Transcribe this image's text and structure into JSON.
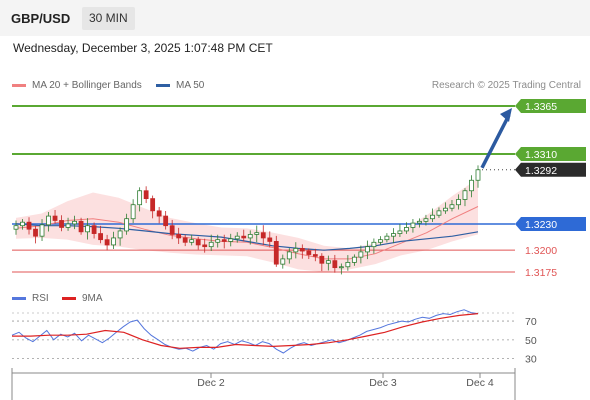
{
  "header": {
    "pair": "GBP/USD",
    "timeframe": "30 MIN",
    "datetime": "Wednesday, December 3, 2025 1:07:48 PM CET"
  },
  "legend": {
    "items": [
      {
        "label": "MA 20 + Bollinger Bands",
        "color": "#f08080"
      },
      {
        "label": "MA 50",
        "color": "#2e5fa3"
      }
    ],
    "credit": "Research © 2025 Trading Central"
  },
  "rsi_legend": {
    "items": [
      {
        "label": "RSI",
        "color": "#5577dd"
      },
      {
        "label": "9MA",
        "color": "#dd2222"
      }
    ]
  },
  "colors": {
    "resistance": "#5aa832",
    "support_main": "#2e6ad6",
    "support_minor": "#e05555",
    "current": "#2b2b2b",
    "arrow": "#2c5aa0",
    "bollinger": "#fbd5d5",
    "ma20": "#f08080",
    "ma50": "#2e5fa3",
    "candle_up": "#2e7d32",
    "candle_down": "#c62828"
  },
  "chart_data": [
    {
      "type": "candlestick",
      "title": "GBP/USD 30 MIN",
      "x_ticks": [
        "Dec 2",
        "Dec 3",
        "Dec 4"
      ],
      "price_levels": [
        {
          "value": 1.3365,
          "label": "1.3365",
          "kind": "resistance"
        },
        {
          "value": 1.331,
          "label": "1.3310",
          "kind": "resistance"
        },
        {
          "value": 1.3292,
          "label": "1.3292",
          "kind": "current"
        },
        {
          "value": 1.323,
          "label": "1.3230",
          "kind": "pivot"
        },
        {
          "value": 1.32,
          "label": "1.3200",
          "kind": "support"
        },
        {
          "value": 1.3175,
          "label": "1.3175",
          "kind": "support"
        }
      ],
      "ylim": [
        1.316,
        1.34
      ],
      "series": [
        {
          "name": "Price",
          "close": [
            1.3228,
            1.3232,
            1.3224,
            1.3216,
            1.3229,
            1.3239,
            1.3234,
            1.3226,
            1.323,
            1.3233,
            1.3221,
            1.3228,
            1.3219,
            1.3212,
            1.3206,
            1.3214,
            1.3222,
            1.3236,
            1.3252,
            1.3268,
            1.3259,
            1.3245,
            1.3239,
            1.3228,
            1.3218,
            1.3214,
            1.3209,
            1.3212,
            1.3206,
            1.3204,
            1.3209,
            1.3212,
            1.321,
            1.3213,
            1.3216,
            1.3214,
            1.3218,
            1.322,
            1.3214,
            1.321,
            1.3184,
            1.319,
            1.3198,
            1.3202,
            1.3199,
            1.3195,
            1.3193,
            1.3185,
            1.3188,
            1.318,
            1.3181,
            1.3186,
            1.3192,
            1.3198,
            1.3204,
            1.3209,
            1.3212,
            1.3216,
            1.3219,
            1.3222,
            1.3226,
            1.3231,
            1.3233,
            1.3236,
            1.324,
            1.3245,
            1.3248,
            1.3252,
            1.3258,
            1.3268,
            1.328,
            1.3292
          ]
        },
        {
          "name": "MA 50",
          "values": [
            1.323,
            1.3228,
            1.3228,
            1.3227,
            1.3225,
            1.3222,
            1.3219,
            1.3217,
            1.3215,
            1.321,
            1.3205,
            1.3202,
            1.32,
            1.3202,
            1.3205,
            1.321,
            1.3213,
            1.3216,
            1.3221
          ]
        },
        {
          "name": "MA 20",
          "values": [
            1.3225,
            1.3228,
            1.3234,
            1.3236,
            1.3232,
            1.3224,
            1.3217,
            1.3213,
            1.321,
            1.3209,
            1.3203,
            1.3196,
            1.319,
            1.319,
            1.3196,
            1.3208,
            1.322,
            1.3236,
            1.325
          ]
        }
      ]
    },
    {
      "type": "line",
      "title": "RSI",
      "y_ticks": [
        "70",
        "50",
        "30"
      ],
      "ylim": [
        20,
        85
      ],
      "series": [
        {
          "name": "RSI",
          "values": [
            55,
            58,
            52,
            48,
            54,
            60,
            50,
            56,
            53,
            57,
            49,
            55,
            51,
            47,
            52,
            58,
            64,
            69,
            71,
            62,
            55,
            50,
            45,
            42,
            40,
            41,
            38,
            42,
            44,
            40,
            46,
            48,
            45,
            49,
            47,
            44,
            48,
            46,
            40,
            36,
            41,
            45,
            47,
            44,
            46,
            48,
            50,
            47,
            49,
            52,
            55,
            59,
            61,
            63,
            66,
            68,
            70,
            69,
            72,
            74,
            73,
            76,
            78,
            77,
            80,
            82,
            79,
            78
          ]
        },
        {
          "name": "9MA",
          "values": [
            54,
            54,
            55,
            55,
            56,
            60,
            58,
            50,
            44,
            41,
            42,
            42,
            45,
            44,
            43,
            44,
            45,
            47,
            50,
            54,
            58,
            64,
            69,
            73,
            76,
            78
          ]
        }
      ]
    }
  ]
}
